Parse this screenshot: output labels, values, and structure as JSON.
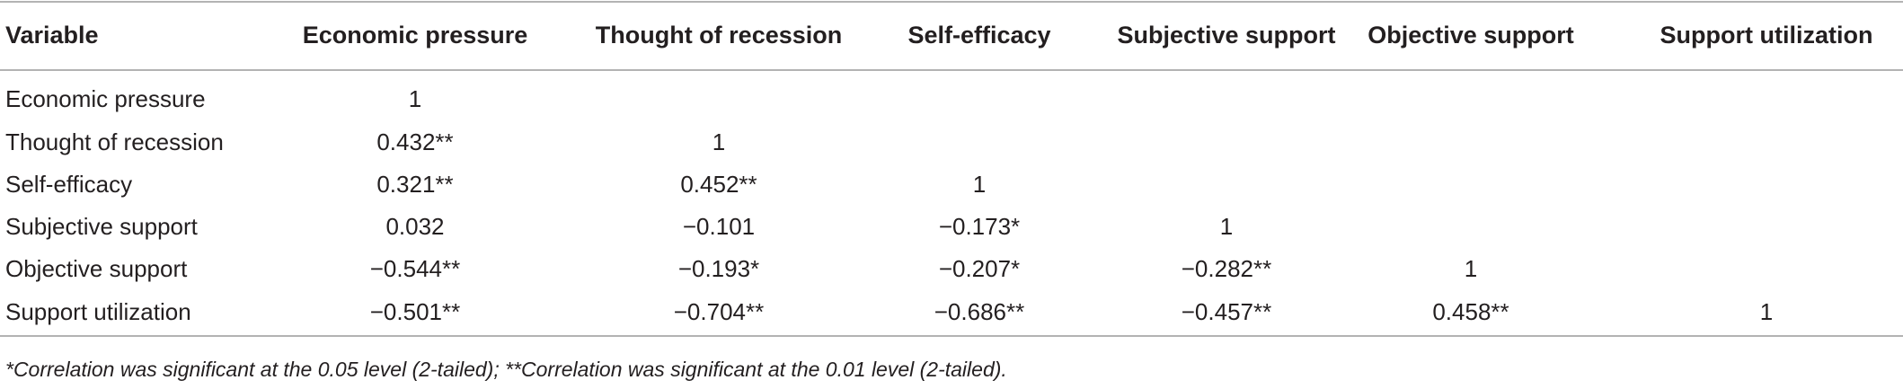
{
  "table": {
    "columns": [
      "Variable",
      "Economic pressure",
      "Thought of recession",
      "Self-efficacy",
      "Subjective support",
      "Objective support",
      "Support utilization"
    ],
    "rows": [
      {
        "label": "Economic pressure",
        "cells": [
          "1"
        ]
      },
      {
        "label": "Thought of recession",
        "cells": [
          "0.432**",
          "1"
        ]
      },
      {
        "label": "Self-efficacy",
        "cells": [
          "0.321**",
          "0.452**",
          "1"
        ]
      },
      {
        "label": "Subjective support",
        "cells": [
          "0.032",
          "−0.101",
          "−0.173*",
          "1"
        ]
      },
      {
        "label": "Objective support",
        "cells": [
          "−0.544**",
          "−0.193*",
          "−0.207*",
          "−0.282**",
          "1"
        ]
      },
      {
        "label": "Support utilization",
        "cells": [
          "−0.501**",
          "−0.704**",
          "−0.686**",
          "−0.457**",
          "0.458**",
          "1"
        ]
      }
    ],
    "footnote": "*Correlation was significant at the 0.05 level (2-tailed); **Correlation was significant at the 0.01 level (2-tailed)."
  }
}
